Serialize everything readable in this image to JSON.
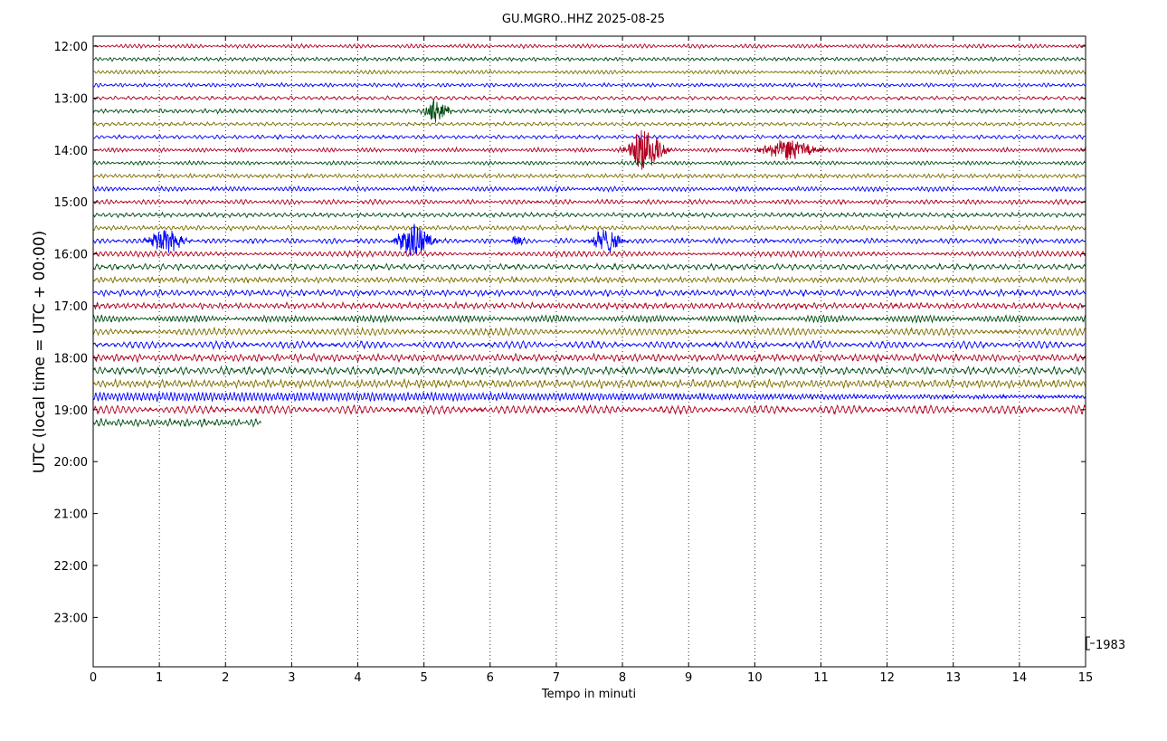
{
  "chart_data": {
    "type": "line",
    "title": "GU.MGRO..HHZ 2025-08-25",
    "xlabel": "Tempo in minuti",
    "ylabel": "UTC (local time = UTC + 00:00)",
    "xlim": [
      0,
      15
    ],
    "x_ticks": [
      "0",
      "1",
      "2",
      "3",
      "4",
      "5",
      "6",
      "7",
      "8",
      "9",
      "10",
      "11",
      "12",
      "13",
      "14",
      "15"
    ],
    "y_ticks": [
      "12:00",
      "13:00",
      "14:00",
      "15:00",
      "16:00",
      "17:00",
      "18:00",
      "19:00",
      "20:00",
      "21:00",
      "22:00",
      "23:00"
    ],
    "grid": "vertical-dotted",
    "scale_label": "1983",
    "colors": [
      "#b00020",
      "#004d14",
      "#7f7000",
      "#0000ff"
    ],
    "traces": [
      {
        "start": "12:00",
        "amplitude": 1.0
      },
      {
        "start": "12:15",
        "amplitude": 1.0
      },
      {
        "start": "12:30",
        "amplitude": 1.0
      },
      {
        "start": "12:45",
        "amplitude": 1.0
      },
      {
        "start": "13:00",
        "amplitude": 1.0
      },
      {
        "start": "13:15",
        "amplitude": 1.1,
        "events": [
          {
            "t": 5.2,
            "amp": 4.5,
            "width": 0.25
          }
        ]
      },
      {
        "start": "13:30",
        "amplitude": 1.0
      },
      {
        "start": "13:45",
        "amplitude": 1.0
      },
      {
        "start": "14:00",
        "amplitude": 1.1,
        "events": [
          {
            "t": 8.35,
            "amp": 9,
            "width": 0.35
          },
          {
            "t": 10.5,
            "amp": 4,
            "width": 0.6
          }
        ]
      },
      {
        "start": "14:15",
        "amplitude": 1.0
      },
      {
        "start": "14:30",
        "amplitude": 1.1
      },
      {
        "start": "14:45",
        "amplitude": 1.2
      },
      {
        "start": "15:00",
        "amplitude": 1.2
      },
      {
        "start": "15:15",
        "amplitude": 1.2
      },
      {
        "start": "15:30",
        "amplitude": 1.2
      },
      {
        "start": "15:45",
        "amplitude": 1.3,
        "events": [
          {
            "t": 1.1,
            "amp": 5,
            "width": 0.35
          },
          {
            "t": 4.85,
            "amp": 7,
            "width": 0.35
          },
          {
            "t": 6.4,
            "amp": 2.5,
            "width": 0.12
          },
          {
            "t": 7.75,
            "amp": 5,
            "width": 0.3
          }
        ]
      },
      {
        "start": "16:00",
        "amplitude": 1.4
      },
      {
        "start": "16:15",
        "amplitude": 1.5
      },
      {
        "start": "16:30",
        "amplitude": 1.5
      },
      {
        "start": "16:45",
        "amplitude": 1.6
      },
      {
        "start": "17:00",
        "amplitude": 1.6
      },
      {
        "start": "17:15",
        "amplitude": 1.7
      },
      {
        "start": "17:30",
        "amplitude": 1.8
      },
      {
        "start": "17:45",
        "amplitude": 1.8
      },
      {
        "start": "18:00",
        "amplitude": 1.9
      },
      {
        "start": "18:15",
        "amplitude": 2.0
      },
      {
        "start": "18:30",
        "amplitude": 2.1
      },
      {
        "start": "18:45",
        "amplitude": 2.1
      },
      {
        "start": "19:00",
        "amplitude": 2.1
      },
      {
        "start": "19:15",
        "amplitude": 2.0,
        "end_minute": 2.55
      }
    ]
  }
}
